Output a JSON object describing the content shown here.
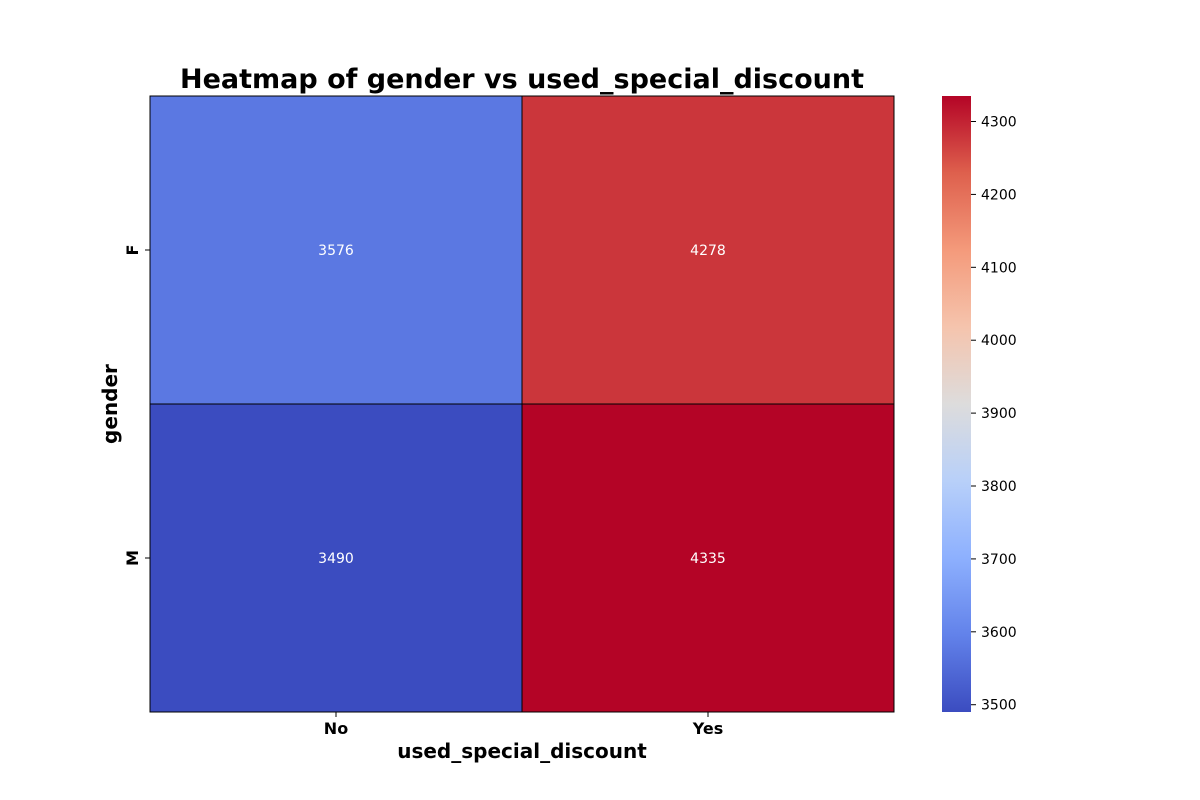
{
  "chart_data": {
    "type": "heatmap",
    "title": "Heatmap of gender vs used_special_discount",
    "xlabel": "used_special_discount",
    "ylabel": "gender",
    "x_categories": [
      "No",
      "Yes"
    ],
    "y_categories": [
      "F",
      "M"
    ],
    "values": [
      [
        3576,
        4278
      ],
      [
        3490,
        4335
      ]
    ],
    "colormap": "coolwarm",
    "color_range": [
      3490,
      4335
    ],
    "colorbar_ticks": [
      3500,
      3600,
      3700,
      3800,
      3900,
      4000,
      4100,
      4200,
      4300
    ],
    "cell_border_color": "#000000",
    "grid": false,
    "annotations": true
  }
}
